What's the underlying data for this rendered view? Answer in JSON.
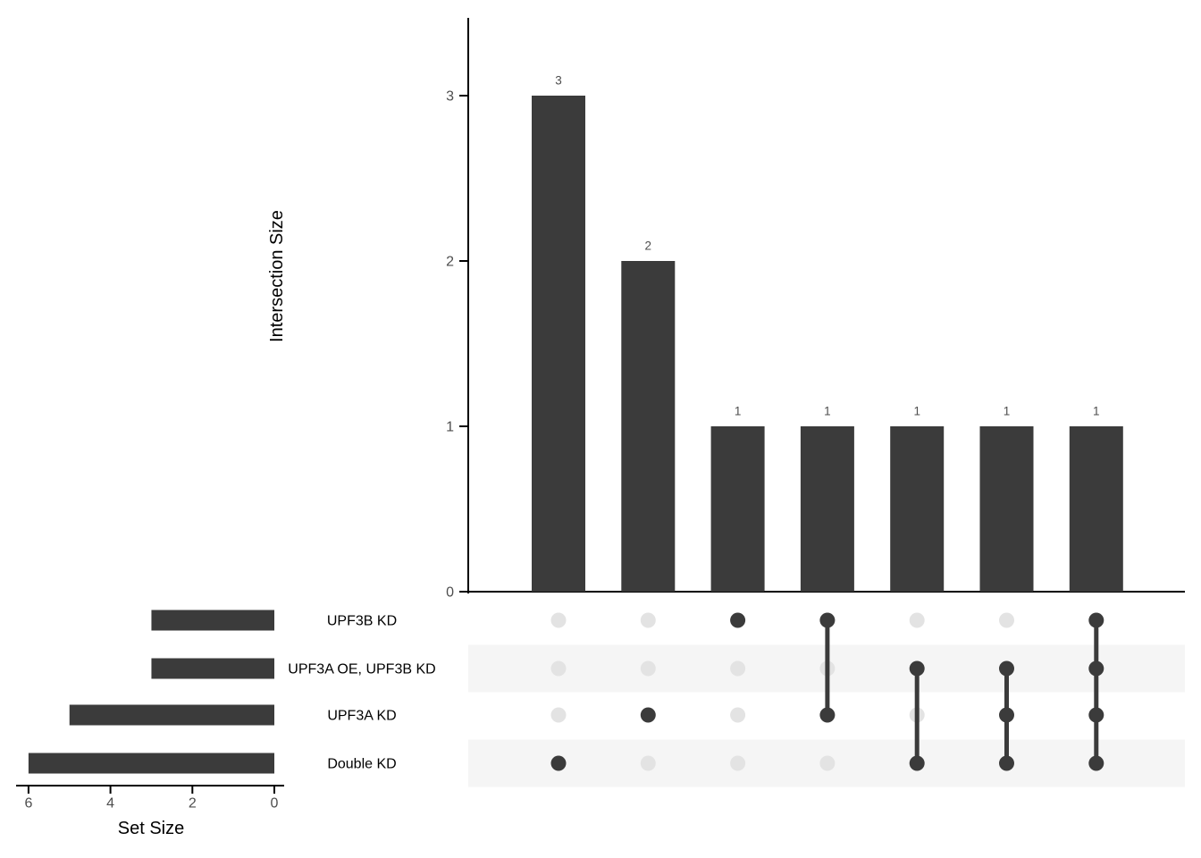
{
  "chart_data": {
    "type": "upset",
    "title": "",
    "sets": [
      {
        "name": "UPF3B KD",
        "size": 3
      },
      {
        "name": "UPF3A OE, UPF3B KD",
        "size": 3
      },
      {
        "name": "UPF3A KD",
        "size": 5
      },
      {
        "name": "Double KD",
        "size": 6
      }
    ],
    "intersections": [
      {
        "members": [
          "Double KD"
        ],
        "size": 3
      },
      {
        "members": [
          "UPF3A KD"
        ],
        "size": 2
      },
      {
        "members": [
          "UPF3B KD"
        ],
        "size": 1
      },
      {
        "members": [
          "UPF3B KD",
          "UPF3A KD"
        ],
        "size": 1
      },
      {
        "members": [
          "UPF3A OE, UPF3B KD",
          "Double KD"
        ],
        "size": 1
      },
      {
        "members": [
          "UPF3A OE, UPF3B KD",
          "UPF3A KD",
          "Double KD"
        ],
        "size": 1
      },
      {
        "members": [
          "UPF3B KD",
          "UPF3A OE, UPF3B KD",
          "UPF3A KD",
          "Double KD"
        ],
        "size": 1
      }
    ],
    "bar_value_labels": [
      "3",
      "2",
      "1",
      "1",
      "1",
      "1",
      "1"
    ],
    "intersection_axis": {
      "label": "Intersection Size",
      "ticks": [
        0,
        1,
        2,
        3
      ],
      "lim": [
        0,
        3.45
      ]
    },
    "set_axis": {
      "label": "Set Size",
      "ticks": [
        6,
        4,
        2,
        0
      ],
      "lim": [
        6,
        0
      ]
    },
    "striped_rows": [
      1,
      3
    ],
    "legend_position": "none",
    "grid": false,
    "colors": {
      "bar": "#3B3B3B",
      "active_dot": "#3B3B3B",
      "inactive_dot": "#E3E3E3",
      "stripe": "#F5F5F5",
      "connector": "#3B3B3B",
      "axis_line": "#000000",
      "tick_label": "#4D4D4D",
      "value_label": "#4D4D4D",
      "set_label": "#000000",
      "background": "#FFFFFF"
    }
  }
}
